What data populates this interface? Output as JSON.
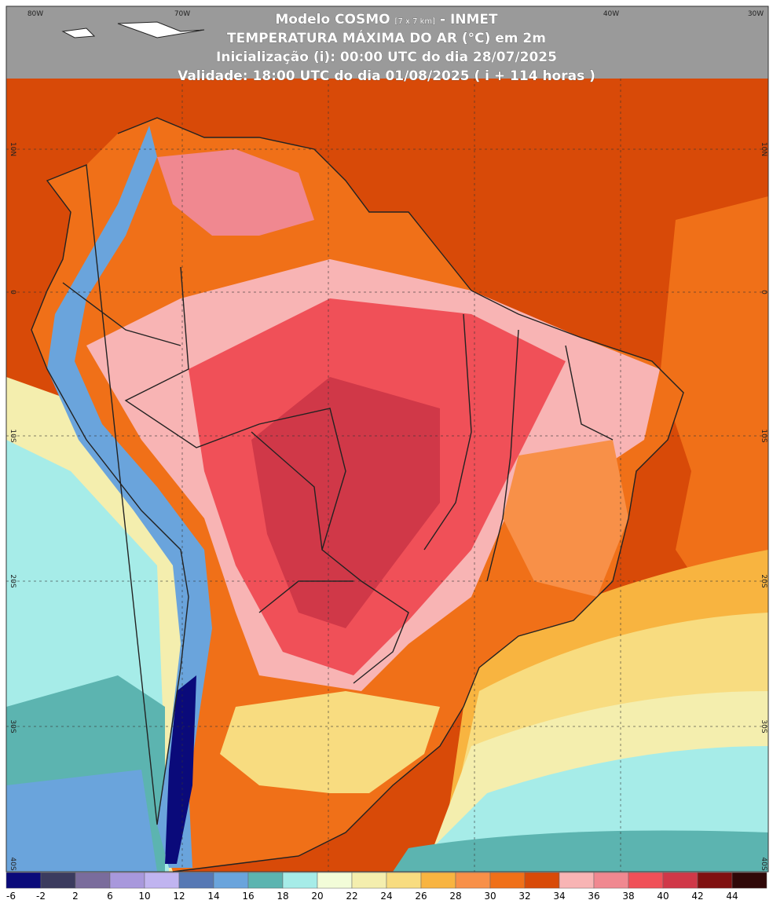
{
  "header": {
    "line1": {
      "main": "Modelo COSMO",
      "small": "[7 x 7 km]",
      "suffix": "- INMET"
    },
    "line2": "TEMPERATURA MÁXIMA DO AR (°C) em 2m",
    "line3": "Inicialização (i): 00:00 UTC do dia 28/07/2025",
    "line4": "Validade: 18:00 UTC do dia 01/08/2025 ( i + 114 horas )"
  },
  "map": {
    "lon_labels": [
      "80W",
      "70W",
      "40W",
      "30W"
    ],
    "lat_labels": [
      "10N",
      "0",
      "10S",
      "20S",
      "30S",
      "40S"
    ]
  },
  "colorbar": {
    "levels": [
      {
        "label": "-6",
        "color": "#0a0a7a"
      },
      {
        "label": "-2",
        "color": "#3b3b5e"
      },
      {
        "label": "2",
        "color": "#7a6c9c"
      },
      {
        "label": "6",
        "color": "#a898dc"
      },
      {
        "label": "10",
        "color": "#c0b4f0"
      },
      {
        "label": "12",
        "color": "#5678b4"
      },
      {
        "label": "14",
        "color": "#6aa4dc"
      },
      {
        "label": "16",
        "color": "#5cb4b0"
      },
      {
        "label": "18",
        "color": "#a6ece8"
      },
      {
        "label": "20",
        "color": "#f2fcd8"
      },
      {
        "label": "22",
        "color": "#f4eeae"
      },
      {
        "label": "24",
        "color": "#f8dc80"
      },
      {
        "label": "26",
        "color": "#f8b440"
      },
      {
        "label": "28",
        "color": "#f89048"
      },
      {
        "label": "30",
        "color": "#f07018"
      },
      {
        "label": "32",
        "color": "#d84a08"
      },
      {
        "label": "34",
        "color": "#f8b4b4"
      },
      {
        "label": "36",
        "color": "#f08890"
      },
      {
        "label": "38",
        "color": "#f05058"
      },
      {
        "label": "40",
        "color": "#d03848"
      },
      {
        "label": "42",
        "color": "#801010"
      },
      {
        "label": "44",
        "color": "#300808"
      }
    ]
  }
}
